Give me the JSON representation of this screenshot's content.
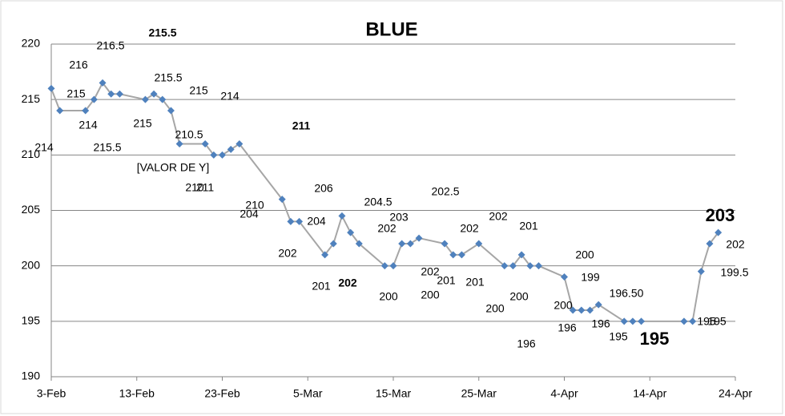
{
  "chart_data": {
    "type": "line",
    "title": "BLUE",
    "x": [
      "3-Feb",
      "4-Feb",
      "7-Feb",
      "8-Feb",
      "9-Feb",
      "10-Feb",
      "11-Feb",
      "14-Feb",
      "15-Feb",
      "16-Feb",
      "17-Feb",
      "18-Feb",
      "21-Feb",
      "22-Feb",
      "23-Feb",
      "24-Feb",
      "25-Feb",
      "2-Mar",
      "3-Mar",
      "4-Mar",
      "7-Mar",
      "8-Mar",
      "9-Mar",
      "10-Mar",
      "11-Mar",
      "14-Mar",
      "15-Mar",
      "16-Mar",
      "17-Mar",
      "18-Mar",
      "21-Mar",
      "22-Mar",
      "23-Mar",
      "25-Mar",
      "28-Mar",
      "29-Mar",
      "30-Mar",
      "31-Mar",
      "1-Apr",
      "4-Apr",
      "5-Apr",
      "6-Apr",
      "7-Apr",
      "8-Apr",
      "11-Apr",
      "12-Apr",
      "13-Apr",
      "18-Apr",
      "19-Apr",
      "20-Apr",
      "21-Apr",
      "22-Apr"
    ],
    "series": [
      {
        "color": "#4f81bd",
        "line_color": "#a6a6a6",
        "values": [
          216,
          214,
          214,
          215,
          216.5,
          215.5,
          215.5,
          215,
          215.5,
          215,
          214,
          211,
          211,
          210,
          210,
          210.5,
          211,
          206,
          204,
          204,
          201,
          202,
          204.5,
          203,
          202,
          200,
          200,
          202,
          202,
          202.5,
          202,
          201,
          201,
          202,
          200,
          200,
          201,
          200,
          200,
          199,
          196,
          196,
          196,
          196.5,
          195,
          195,
          195,
          195,
          195,
          199.5,
          202,
          203
        ]
      }
    ],
    "annotations": [
      "215.5",
      "216.5",
      "216",
      "215",
      "215.5",
      "215",
      "214",
      "214",
      "215",
      "215.5",
      "214",
      "211",
      "210.5",
      "[VALOR DE Y]",
      "210",
      "211",
      "210",
      "204",
      "206",
      "204.5",
      "202.5",
      "203",
      "204",
      "202",
      "202",
      "202",
      "201",
      "202",
      "201",
      "202",
      "202",
      "201",
      "201",
      "200",
      "200",
      "200",
      "200",
      "200",
      "199",
      "196.50",
      "200",
      "196",
      "196",
      "195",
      "195",
      "196",
      "203",
      "202",
      "199.5",
      "195",
      "195"
    ],
    "xlim": [
      "3-Feb",
      "24-Apr"
    ],
    "xticks": [
      "3-Feb",
      "13-Feb",
      "23-Feb",
      "5-Mar",
      "15-Mar",
      "25-Mar",
      "4-Apr",
      "14-Apr",
      "24-Apr"
    ],
    "ylim": [
      190,
      220
    ],
    "yticks": [
      190,
      195,
      200,
      205,
      210,
      215,
      220
    ],
    "grid": true
  }
}
